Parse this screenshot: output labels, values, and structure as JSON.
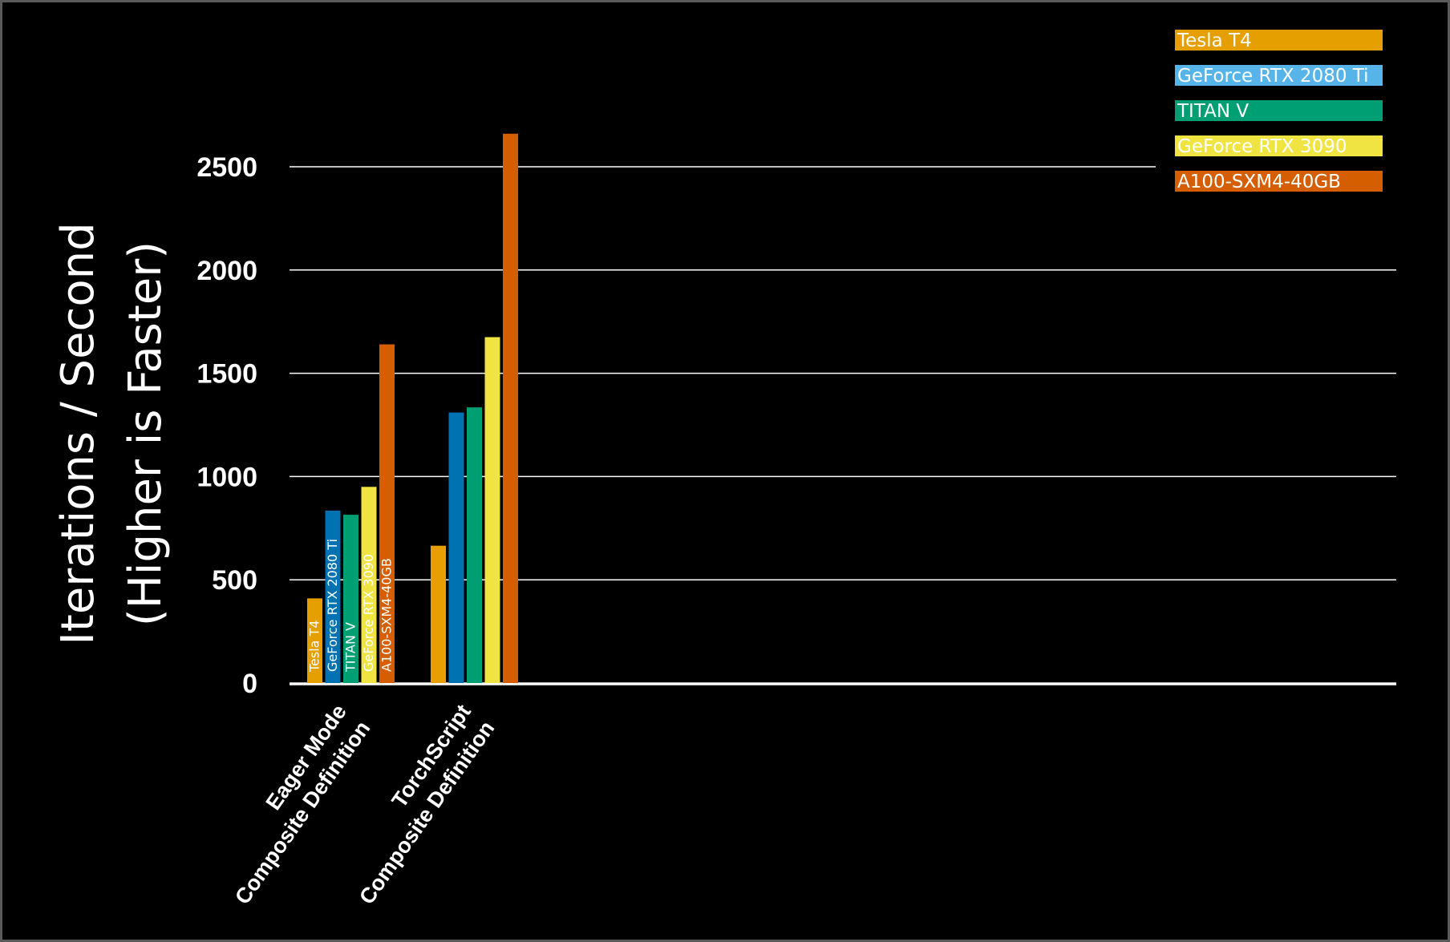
{
  "chart_data": {
    "type": "bar",
    "title": "",
    "xlabel": "",
    "ylabel_lines": [
      "Iterations / Second",
      "(Higher is Faster)"
    ],
    "categories": [
      [
        "Eager Mode",
        "Composite Definition"
      ],
      [
        "TorchScript",
        "Composite Definition"
      ]
    ],
    "series": [
      {
        "name": "Tesla T4",
        "color": "#E69F00",
        "values": [
          410,
          665
        ]
      },
      {
        "name": "GeForce RTX 2080 Ti",
        "color": "#0072B2",
        "values": [
          835,
          1310
        ]
      },
      {
        "name": "TITAN V",
        "color": "#009E73",
        "values": [
          815,
          1335
        ]
      },
      {
        "name": "GeForce RTX 3090",
        "color": "#F0E442",
        "values": [
          950,
          1675
        ]
      },
      {
        "name": "A100-SXM4-40GB",
        "color": "#D55E00",
        "values": [
          1640,
          2660
        ]
      }
    ],
    "legend_colors": [
      "#E69F00",
      "#56B4E9",
      "#009E73",
      "#F0E442",
      "#D55E00"
    ],
    "yticks": [
      0,
      500,
      1000,
      1500,
      2000,
      2500
    ],
    "ylim": [
      0,
      2700
    ],
    "grid": true,
    "legend_position": "top-right",
    "bar_labels_on_first_group": true
  }
}
